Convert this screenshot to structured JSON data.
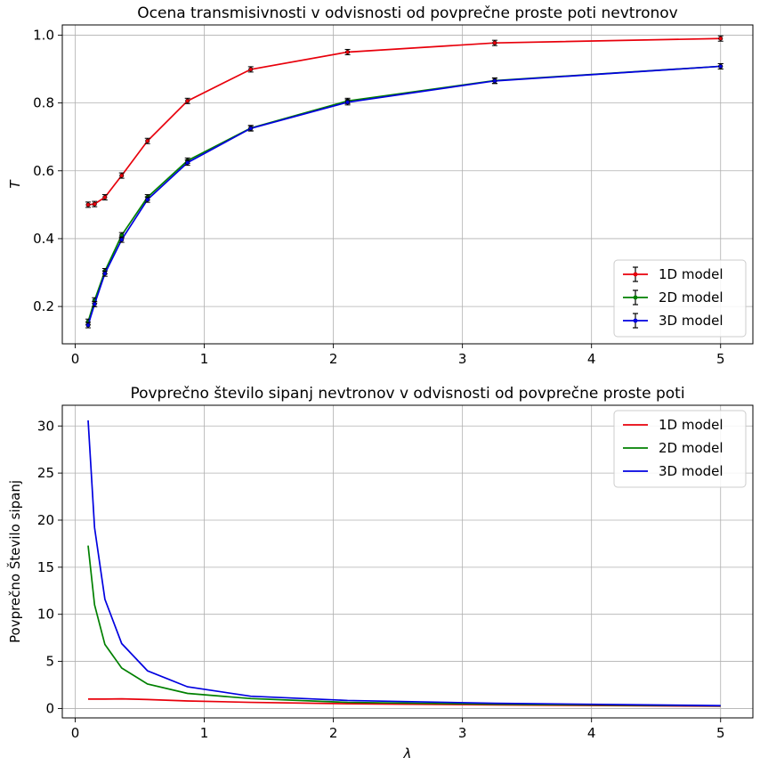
{
  "chart_data": [
    {
      "type": "line",
      "title": "Ocena transmisivnosti v odvisnosti od povprečne proste poti nevtronov",
      "xlabel": "",
      "ylabel": "T",
      "xlim": [
        -0.1,
        5.25
      ],
      "ylim": [
        0.09,
        1.03
      ],
      "xticks": [
        0,
        1,
        2,
        3,
        4,
        5
      ],
      "yticks": [
        0.2,
        0.4,
        0.6,
        0.8,
        1.0
      ],
      "xtick_labels": [
        "0",
        "1",
        "2",
        "3",
        "4",
        "5"
      ],
      "ytick_labels": [
        "0.2",
        "0.4",
        "0.6",
        "0.8",
        "1.0"
      ],
      "grid": true,
      "legend_position": "bottom-right",
      "error_bars": true,
      "x": [
        0.1,
        0.15,
        0.23,
        0.36,
        0.56,
        0.87,
        1.36,
        2.11,
        3.25,
        5.0
      ],
      "series": [
        {
          "name": "1D model",
          "color": "#e8000b",
          "values": [
            0.5,
            0.502,
            0.522,
            0.586,
            0.688,
            0.806,
            0.899,
            0.95,
            0.977,
            0.99
          ]
        },
        {
          "name": "2D model",
          "color": "#008000",
          "values": [
            0.155,
            0.218,
            0.304,
            0.41,
            0.522,
            0.63,
            0.726,
            0.806,
            0.866,
            0.908
          ]
        },
        {
          "name": "3D model",
          "color": "#0000e0",
          "values": [
            0.145,
            0.207,
            0.297,
            0.397,
            0.515,
            0.624,
            0.725,
            0.802,
            0.865,
            0.908
          ]
        }
      ]
    },
    {
      "type": "line",
      "title": "Povprečno število sipanj nevtronov v odvisnosti od povprečne proste poti",
      "xlabel": "λ",
      "ylabel": "Povprečno Število sipanj",
      "xlim": [
        -0.1,
        5.25
      ],
      "ylim": [
        -1.0,
        32.2
      ],
      "xticks": [
        0,
        1,
        2,
        3,
        4,
        5
      ],
      "yticks": [
        0,
        5,
        10,
        15,
        20,
        25,
        30
      ],
      "xtick_labels": [
        "0",
        "1",
        "2",
        "3",
        "4",
        "5"
      ],
      "ytick_labels": [
        "0",
        "5",
        "10",
        "15",
        "20",
        "25",
        "30"
      ],
      "grid": true,
      "legend_position": "top-right",
      "error_bars": false,
      "x": [
        0.1,
        0.15,
        0.23,
        0.36,
        0.56,
        0.87,
        1.36,
        2.11,
        3.25,
        5.0
      ],
      "series": [
        {
          "name": "1D model",
          "color": "#e8000b",
          "values": [
            1.0,
            1.0,
            1.0,
            1.02,
            0.95,
            0.8,
            0.65,
            0.5,
            0.38,
            0.24
          ]
        },
        {
          "name": "2D model",
          "color": "#008000",
          "values": [
            17.3,
            11.0,
            6.8,
            4.3,
            2.6,
            1.6,
            1.05,
            0.65,
            0.45,
            0.28
          ]
        },
        {
          "name": "3D model",
          "color": "#0000e0",
          "values": [
            30.6,
            19.2,
            11.6,
            6.9,
            4.0,
            2.3,
            1.3,
            0.85,
            0.55,
            0.3
          ]
        }
      ]
    }
  ]
}
